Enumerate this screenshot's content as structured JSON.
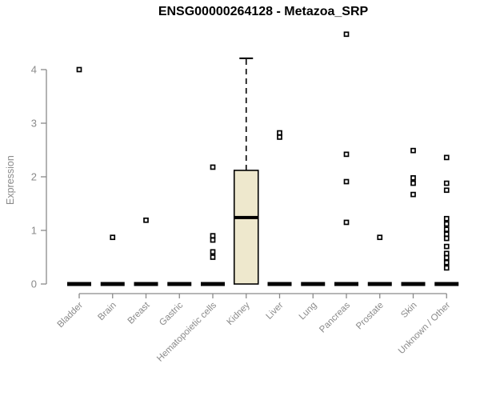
{
  "chart_data": {
    "type": "boxplot",
    "title": "ENSG00000264128 - Metazoa_SRP",
    "ylabel": "Expression",
    "xlabel": "",
    "ylim": [
      0,
      4
    ],
    "yticks": [
      0,
      1,
      2,
      3,
      4
    ],
    "grid": false,
    "legend": false,
    "categories": [
      "Bladder",
      "Brain",
      "Breast",
      "Gastric",
      "Hematopoietic cells",
      "Kidney",
      "Liver",
      "Lung",
      "Pancreas",
      "Prostate",
      "Skin",
      "Unknown / Other"
    ],
    "boxes": [
      {
        "category": "Bladder",
        "q1": 0,
        "median": 0,
        "q3": 0,
        "whisker_low": 0,
        "whisker_high": 0,
        "outliers": [
          4.0
        ]
      },
      {
        "category": "Brain",
        "q1": 0,
        "median": 0,
        "q3": 0,
        "whisker_low": 0,
        "whisker_high": 0,
        "outliers": [
          0.87
        ]
      },
      {
        "category": "Breast",
        "q1": 0,
        "median": 0,
        "q3": 0,
        "whisker_low": 0,
        "whisker_high": 0,
        "outliers": [
          1.19
        ]
      },
      {
        "category": "Gastric",
        "q1": 0,
        "median": 0,
        "q3": 0,
        "whisker_low": 0,
        "whisker_high": 0,
        "outliers": []
      },
      {
        "category": "Hematopoietic cells",
        "q1": 0,
        "median": 0,
        "q3": 0,
        "whisker_low": 0,
        "whisker_high": 0,
        "outliers": [
          2.18,
          0.9,
          0.82,
          0.6,
          0.5
        ]
      },
      {
        "category": "Kidney",
        "q1": 0,
        "median": 1.24,
        "q3": 2.12,
        "whisker_low": 0,
        "whisker_high": 4.21,
        "outliers": []
      },
      {
        "category": "Liver",
        "q1": 0,
        "median": 0,
        "q3": 0,
        "whisker_low": 0,
        "whisker_high": 0,
        "outliers": [
          2.82,
          2.74
        ]
      },
      {
        "category": "Lung",
        "q1": 0,
        "median": 0,
        "q3": 0,
        "whisker_low": 0,
        "whisker_high": 0,
        "outliers": []
      },
      {
        "category": "Pancreas",
        "q1": 0,
        "median": 0,
        "q3": 0,
        "whisker_low": 0,
        "whisker_high": 0,
        "outliers": [
          4.66,
          2.42,
          1.91,
          1.15
        ]
      },
      {
        "category": "Prostate",
        "q1": 0,
        "median": 0,
        "q3": 0,
        "whisker_low": 0,
        "whisker_high": 0,
        "outliers": [
          0.87
        ]
      },
      {
        "category": "Skin",
        "q1": 0,
        "median": 0,
        "q3": 0,
        "whisker_low": 0,
        "whisker_high": 0,
        "outliers": [
          2.49,
          1.98,
          1.88,
          1.67
        ]
      },
      {
        "category": "Unknown / Other",
        "q1": 0,
        "median": 0,
        "q3": 0,
        "whisker_low": 0,
        "whisker_high": 0,
        "outliers": [
          2.36,
          1.88,
          1.75,
          1.22,
          1.12,
          1.02,
          0.93,
          0.85,
          0.7,
          0.57,
          0.49,
          0.4,
          0.3
        ]
      }
    ],
    "colors": {
      "box_fill": "#EEE8CD",
      "box_border": "#000000",
      "median": "#000000",
      "zero_bar": "#000000",
      "outlier_stroke": "#000000",
      "outlier_fill": "#ffffff",
      "axis_line": "#8a8a8a",
      "tick_label": "#8a8a8a",
      "title": "#000000",
      "background": "#ffffff"
    }
  }
}
